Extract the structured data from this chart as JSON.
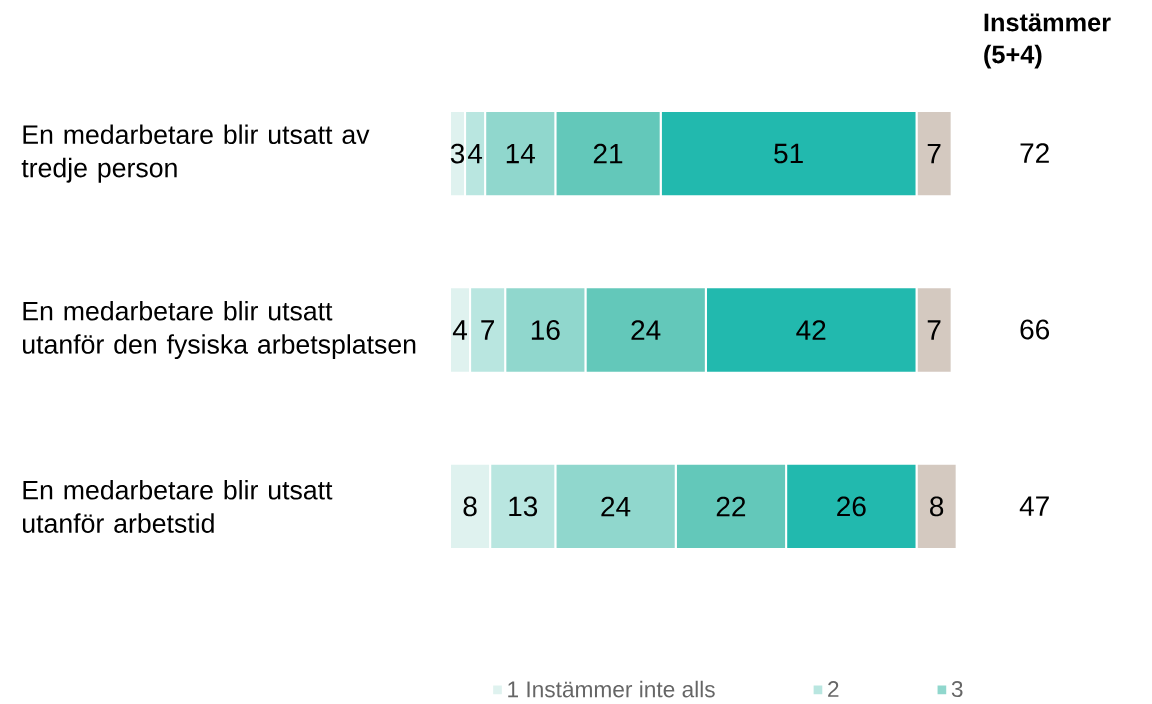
{
  "chart_data": {
    "type": "bar",
    "orientation": "horizontal",
    "stacked": true,
    "legend": "bottom",
    "categories": [
      "En medarbetare blir utsatt av tredje person",
      "En medarbetare blir utsatt utanför den fysiska arbetsplatsen",
      "En medarbetare blir utsatt utanför arbetstid"
    ],
    "series": [
      {
        "name": "1 Instämmer inte alls",
        "color": "#dff2ef",
        "values": [
          3,
          4,
          8
        ],
        "value_labels": [
          "3",
          "4",
          "8"
        ]
      },
      {
        "name": "2",
        "color": "#b9e6e0",
        "values": [
          4,
          7,
          13
        ],
        "value_labels": [
          "4",
          "7",
          "13"
        ]
      },
      {
        "name": "3",
        "color": "#90d7cd",
        "values": [
          14,
          16,
          24
        ],
        "value_labels": [
          "14",
          "16",
          "24"
        ]
      },
      {
        "color": "#63c8ba",
        "values": [
          21,
          24,
          22
        ],
        "value_labels": [
          "21",
          "24",
          "22"
        ]
      },
      {
        "color": "#22b9ae",
        "values": [
          51,
          42,
          26
        ],
        "value_labels": [
          "51",
          "42",
          "26"
        ]
      },
      {
        "color": "#d4c9c0",
        "values": [
          7,
          7,
          8
        ],
        "value_labels": [
          "7",
          "7",
          "8"
        ]
      }
    ],
    "annotations": [
      "Instämmer (5+4)",
      "72",
      "66",
      "47"
    ]
  }
}
